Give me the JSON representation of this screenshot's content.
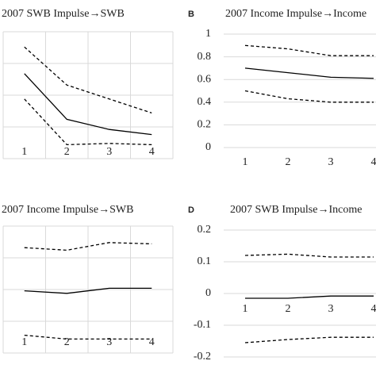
{
  "chart_data": [
    {
      "type": "line",
      "title": "2007 SWB Impulse→SWB",
      "categories": [
        "1",
        "2",
        "3",
        "4"
      ],
      "ylim": [
        0,
        1
      ],
      "grid": true,
      "series": [
        {
          "color": "#000000",
          "style": "dashed",
          "values": [
            0.88,
            0.58,
            0.47,
            0.36
          ]
        },
        {
          "color": "#000000",
          "style": "solid",
          "values": [
            0.67,
            0.31,
            0.23,
            0.19
          ]
        },
        {
          "color": "#000000",
          "style": "dashed",
          "values": [
            0.47,
            0.11,
            0.12,
            0.11
          ]
        }
      ]
    },
    {
      "type": "line",
      "panel_label": "B",
      "title": "2007 Income Impulse→Income",
      "categories": [
        "1",
        "2",
        "3",
        "4"
      ],
      "ylim": [
        0,
        1
      ],
      "yticks": [
        0,
        0.2,
        0.4,
        0.6,
        0.8,
        1
      ],
      "grid": true,
      "series": [
        {
          "color": "#000000",
          "style": "dashed",
          "values": [
            0.9,
            0.87,
            0.81,
            0.81
          ]
        },
        {
          "color": "#000000",
          "style": "solid",
          "values": [
            0.7,
            0.66,
            0.62,
            0.61
          ]
        },
        {
          "color": "#000000",
          "style": "dashed",
          "values": [
            0.5,
            0.43,
            0.4,
            0.4
          ]
        }
      ]
    },
    {
      "type": "line",
      "title": "2007 Income Impulse→SWB",
      "categories": [
        "1",
        "2",
        "3",
        "4"
      ],
      "ylim": [
        0,
        1
      ],
      "grid": true,
      "series": [
        {
          "color": "#000000",
          "style": "dashed",
          "values": [
            0.83,
            0.81,
            0.87,
            0.86
          ]
        },
        {
          "color": "#000000",
          "style": "solid",
          "values": [
            0.49,
            0.47,
            0.51,
            0.51
          ]
        },
        {
          "color": "#000000",
          "style": "dashed",
          "values": [
            0.14,
            0.11,
            0.11,
            0.11
          ]
        }
      ]
    },
    {
      "type": "line",
      "panel_label": "D",
      "title": "2007 SWB Impulse→Income",
      "categories": [
        "1",
        "2",
        "3",
        "4"
      ],
      "ylim": [
        -0.2,
        0.2
      ],
      "yticks": [
        -0.2,
        -0.1,
        0,
        0.1,
        0.2
      ],
      "grid": true,
      "series": [
        {
          "color": "#000000",
          "style": "dashed",
          "values": [
            0.12,
            0.124,
            0.115,
            0.115
          ]
        },
        {
          "color": "#000000",
          "style": "solid",
          "values": [
            -0.015,
            -0.015,
            -0.008,
            -0.008
          ]
        },
        {
          "color": "#000000",
          "style": "dashed",
          "values": [
            -0.155,
            -0.145,
            -0.138,
            -0.138
          ]
        }
      ]
    }
  ]
}
